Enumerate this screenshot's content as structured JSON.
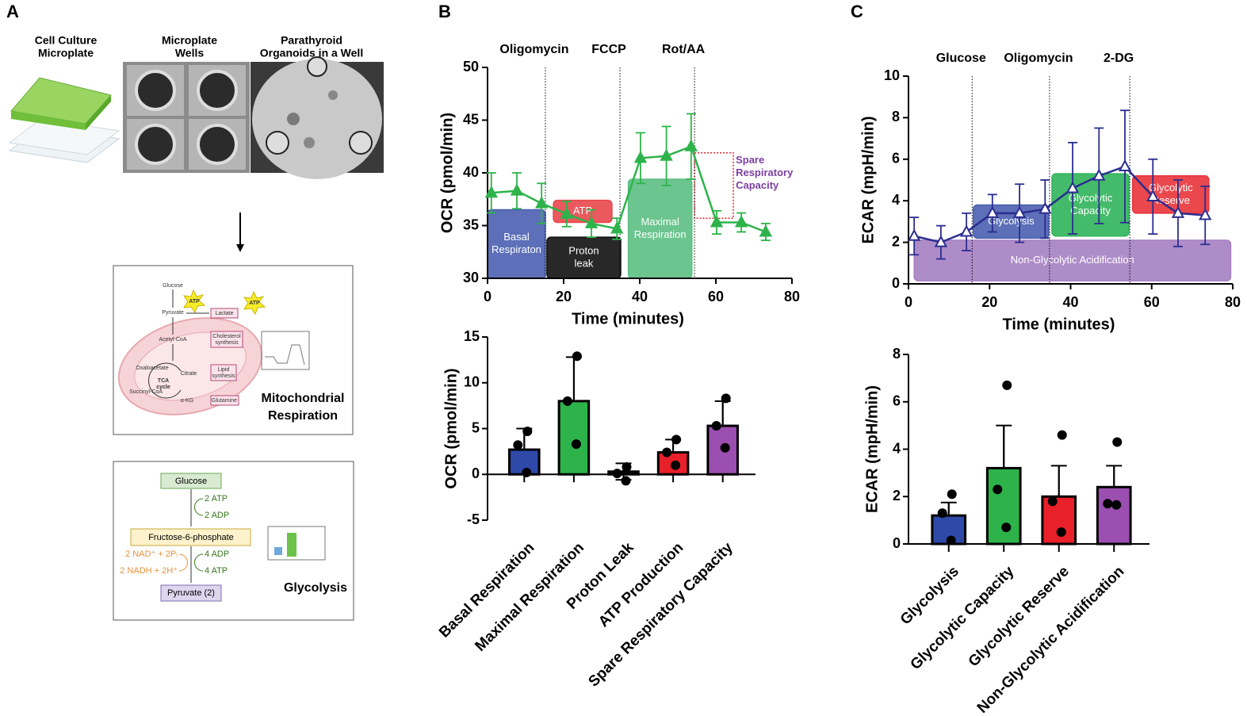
{
  "panel_labels": [
    "A",
    "B",
    "C"
  ],
  "panel_a": {
    "photo_labels": [
      [
        "Cell Culture",
        "Microplate"
      ],
      [
        "Microplate",
        "Wells"
      ],
      [
        "Parathyroid",
        "Organoids in a Well"
      ]
    ],
    "mito": {
      "labels": [
        "Glucose",
        "ATP",
        "Pyruvate",
        "Lactate",
        "ATP",
        "Acetyl-CoA",
        [
          "Cholesterol",
          "synthesis"
        ],
        "Oxaloacetate",
        "Citrate",
        [
          "Lipid",
          "synthesis"
        ],
        [
          "TCA",
          "cycle"
        ],
        "Succinyl-CoA",
        "α-KG",
        "Glutamine"
      ],
      "title": [
        "Mitochondrial",
        "Respiration"
      ]
    },
    "glycolysis": {
      "labels": [
        "Glucose",
        "2 ATP",
        "2 ADP",
        "Fructose-6-phosphate",
        "2 NAD⁺ + 2Pᵢ",
        "2 NADH + 2H⁺",
        "4 ADP",
        "4 ATP",
        "Pyruvate (2)"
      ],
      "title": "Glycolysis"
    }
  },
  "chart_data": [
    {
      "type": "line",
      "xlabel": "Time (minutes)",
      "ylabel": "OCR (pmol/min)",
      "xlim": [
        0,
        80
      ],
      "xticks": [
        0,
        20,
        40,
        60,
        80
      ],
      "ylim": [
        30,
        50
      ],
      "yticks": [
        30,
        35,
        40,
        45,
        50
      ],
      "events": [
        {
          "label": "Oligomycin",
          "x": 15.2
        },
        {
          "label": "FCCP",
          "x": 34.8
        },
        {
          "label": "Rot/AA",
          "x": 54.4
        }
      ],
      "regions": [
        {
          "label": [
            "Basal",
            "Respiraton"
          ],
          "color": "#4a5fb0",
          "x": [
            0,
            15.2
          ],
          "y": [
            30,
            36.5
          ]
        },
        {
          "label": [
            "ATP"
          ],
          "color": "#e8474c",
          "x": [
            17.3,
            32.7
          ],
          "y": [
            35.3,
            37.4
          ]
        },
        {
          "label": [
            "Proton",
            "leak"
          ],
          "color": "#111111",
          "x": [
            15.6,
            35
          ],
          "y": [
            30,
            33.9
          ]
        },
        {
          "label": [
            "Maximal",
            "Respiration"
          ],
          "color": "#5cbf83",
          "x": [
            37,
            53.7
          ],
          "y": [
            30,
            39.4
          ]
        },
        {
          "label": [
            "Spare",
            "Respiratory",
            "Capacity"
          ],
          "color": "#e8202a",
          "x": [
            54.4,
            64.6
          ],
          "y": [
            35.7,
            41.9
          ],
          "style": "dotted",
          "label_color": "#7b3fa0"
        }
      ],
      "series": [
        {
          "color": "#2db34a",
          "marker": "triangle",
          "marker_filled": true,
          "x": [
            1,
            7.7,
            14.2,
            20.8,
            27.3,
            34,
            40.2,
            47,
            53.5,
            60.2,
            66.7,
            73.1
          ],
          "values": [
            38.1,
            38.3,
            37.1,
            36.1,
            35.2,
            34.7,
            41.4,
            41.6,
            42.5,
            35.3,
            35.3,
            34.4
          ],
          "errors": [
            1.9,
            1.7,
            1.9,
            1.2,
            1.3,
            1.0,
            2.4,
            2.8,
            3.1,
            1.1,
            0.9,
            0.8
          ]
        }
      ]
    },
    {
      "type": "bar",
      "ylabel": "OCR (pmol/min)",
      "categories": [
        "Basal Respiration",
        "Maximal Respiration",
        "Proton Leak",
        "ATP Production",
        "Spare Respiratory Capacity"
      ],
      "values": [
        2.7,
        8.0,
        0.3,
        2.4,
        5.3
      ],
      "errors": [
        2.3,
        4.8,
        0.9,
        1.4,
        2.7
      ],
      "points": [
        [
          4.7,
          3.2,
          0.2
        ],
        [
          12.9,
          8.0,
          3.3
        ],
        [
          0.8,
          0.1,
          -0.7
        ],
        [
          3.8,
          2.4,
          1.0
        ],
        [
          8.3,
          5.3,
          2.9
        ]
      ],
      "colors": [
        "#2e49a8",
        "#2db34a",
        "#111111",
        "#e8202a",
        "#9b4fb0"
      ],
      "ylim": [
        -5,
        15
      ],
      "yticks": [
        -5,
        0,
        5,
        10,
        15
      ]
    },
    {
      "type": "line",
      "xlabel": "Time (minutes)",
      "ylabel": "ECAR (mpH/min)",
      "xlim": [
        0,
        80
      ],
      "xticks": [
        0,
        20,
        40,
        60,
        80
      ],
      "ylim": [
        0,
        10
      ],
      "yticks": [
        0,
        2,
        4,
        6,
        8,
        10
      ],
      "events": [
        {
          "label": "Glucose",
          "x": 15.7
        },
        {
          "label": "Oligomycin",
          "x": 34.8
        },
        {
          "label": "2-DG",
          "x": 54.6
        }
      ],
      "regions": [
        {
          "label": [
            "Non-Glycolytic Acidification"
          ],
          "color": "#a57fc2",
          "x": [
            1.4,
            79.5
          ],
          "y": [
            0.15,
            2.1
          ]
        },
        {
          "label": [
            "Glycolysis"
          ],
          "color": "#4a5fb0",
          "x": [
            16,
            34.6
          ],
          "y": [
            2.2,
            3.8
          ]
        },
        {
          "label": [
            "Glycolytic",
            "Capacity"
          ],
          "color": "#2fb45a",
          "x": [
            35.4,
            54.4
          ],
          "y": [
            2.3,
            5.3
          ]
        },
        {
          "label": [
            "Glycolytic",
            "Reserve"
          ],
          "color": "#e8343a",
          "x": [
            55.3,
            74.1
          ],
          "y": [
            3.4,
            5.2
          ]
        }
      ],
      "series": [
        {
          "color": "#2b2d8f",
          "marker": "triangle",
          "marker_filled": false,
          "x": [
            1.4,
            8.0,
            14.3,
            20.7,
            27.4,
            33.7,
            40.5,
            47,
            53.4,
            60.3,
            66.5,
            73.2
          ],
          "values": [
            2.3,
            2.0,
            2.5,
            3.4,
            3.4,
            3.6,
            4.6,
            5.2,
            5.65,
            4.2,
            3.4,
            3.3
          ],
          "errors": [
            0.9,
            0.8,
            0.9,
            0.9,
            1.4,
            1.4,
            2.2,
            2.3,
            2.7,
            1.8,
            1.6,
            1.4
          ]
        }
      ]
    },
    {
      "type": "bar",
      "ylabel": "ECAR (mpH/min)",
      "categories": [
        "Glycolysis",
        "Glycolytic Capacity",
        "Glycolytic Reserve",
        "Non-Glycolytic Acidification"
      ],
      "values": [
        1.2,
        3.2,
        2.0,
        2.4
      ],
      "errors": [
        0.55,
        1.8,
        1.3,
        0.9
      ],
      "points": [
        [
          2.1,
          1.3,
          0.15
        ],
        [
          6.7,
          2.3,
          0.7
        ],
        [
          4.6,
          1.8,
          0.5
        ],
        [
          4.3,
          1.7,
          1.65
        ]
      ],
      "colors": [
        "#2e49a8",
        "#2db34a",
        "#e8202a",
        "#9b4fb0"
      ],
      "ylim": [
        0,
        8
      ],
      "yticks": [
        0,
        2,
        4,
        6,
        8
      ]
    }
  ]
}
